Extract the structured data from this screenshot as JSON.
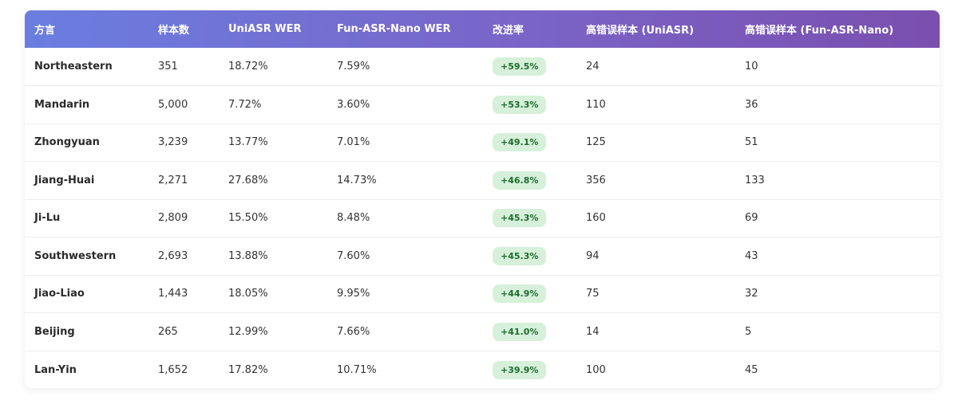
{
  "table": {
    "headers": [
      "方言",
      "样本数",
      "UniASR WER",
      "Fun-ASR-Nano WER",
      "改进率",
      "高错误样本 (UniASR)",
      "高错误样本 (Fun-ASR-Nano)"
    ],
    "rows": [
      {
        "dialect": "Northeastern",
        "samples": "351",
        "uniasr_wer": "18.72%",
        "nano_wer": "7.59%",
        "improvement": "+59.5%",
        "high_err_uniasr": "24",
        "high_err_nano": "10"
      },
      {
        "dialect": "Mandarin",
        "samples": "5,000",
        "uniasr_wer": "7.72%",
        "nano_wer": "3.60%",
        "improvement": "+53.3%",
        "high_err_uniasr": "110",
        "high_err_nano": "36"
      },
      {
        "dialect": "Zhongyuan",
        "samples": "3,239",
        "uniasr_wer": "13.77%",
        "nano_wer": "7.01%",
        "improvement": "+49.1%",
        "high_err_uniasr": "125",
        "high_err_nano": "51"
      },
      {
        "dialect": "Jiang-Huai",
        "samples": "2,271",
        "uniasr_wer": "27.68%",
        "nano_wer": "14.73%",
        "improvement": "+46.8%",
        "high_err_uniasr": "356",
        "high_err_nano": "133"
      },
      {
        "dialect": "Ji-Lu",
        "samples": "2,809",
        "uniasr_wer": "15.50%",
        "nano_wer": "8.48%",
        "improvement": "+45.3%",
        "high_err_uniasr": "160",
        "high_err_nano": "69"
      },
      {
        "dialect": "Southwestern",
        "samples": "2,693",
        "uniasr_wer": "13.88%",
        "nano_wer": "7.60%",
        "improvement": "+45.3%",
        "high_err_uniasr": "94",
        "high_err_nano": "43"
      },
      {
        "dialect": "Jiao-Liao",
        "samples": "1,443",
        "uniasr_wer": "18.05%",
        "nano_wer": "9.95%",
        "improvement": "+44.9%",
        "high_err_uniasr": "75",
        "high_err_nano": "32"
      },
      {
        "dialect": "Beijing",
        "samples": "265",
        "uniasr_wer": "12.99%",
        "nano_wer": "7.66%",
        "improvement": "+41.0%",
        "high_err_uniasr": "14",
        "high_err_nano": "5"
      },
      {
        "dialect": "Lan-Yin",
        "samples": "1,652",
        "uniasr_wer": "17.82%",
        "nano_wer": "10.71%",
        "improvement": "+39.9%",
        "high_err_uniasr": "100",
        "high_err_nano": "45"
      }
    ]
  },
  "colors": {
    "header_gradient_start": "#6a7ee0",
    "header_gradient_end": "#7a4fae",
    "badge_bg": "#d6f0da",
    "badge_text": "#1e6b2e"
  }
}
